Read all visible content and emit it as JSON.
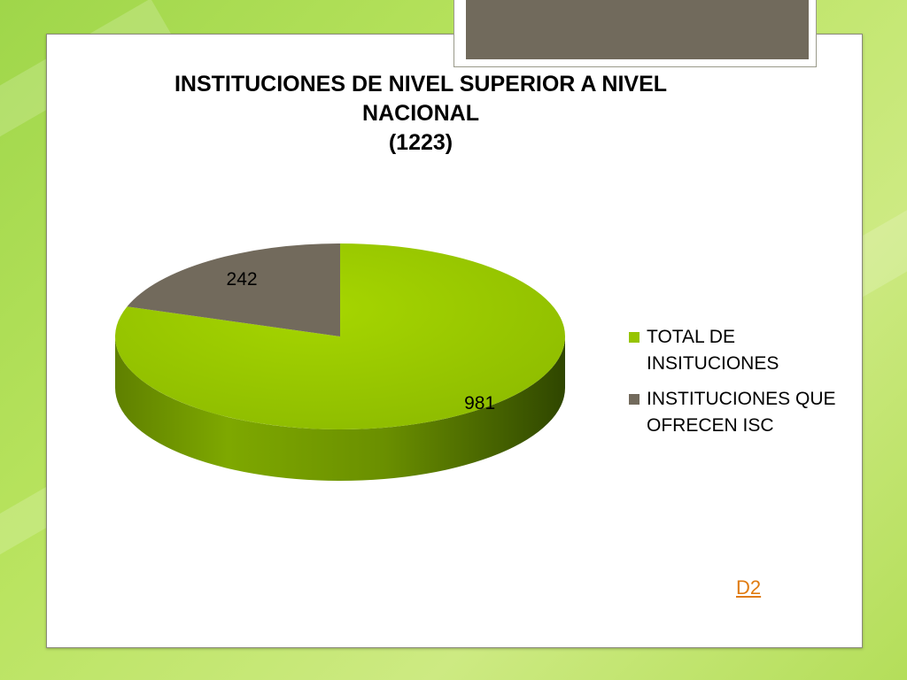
{
  "slide": {
    "link_label": "D2",
    "colors": {
      "background": "#a6d94e",
      "card": "#ffffff",
      "header_tab": "#716a5c",
      "link": "#e07b10"
    }
  },
  "chart_data": {
    "type": "pie",
    "title_lines": [
      "INSTITUCIONES DE NIVEL SUPERIOR A NIVEL",
      "NACIONAL",
      "(1223)"
    ],
    "categories": [
      "TOTAL DE INSITUCIONES",
      "INSTITUCIONES QUE OFRECEN ISC"
    ],
    "values": [
      981,
      242
    ],
    "data_labels": [
      "981",
      "242"
    ],
    "colors": [
      "#96c400",
      "#726a5c"
    ],
    "legend": {
      "placement": "right",
      "items": [
        {
          "label": "TOTAL DE INSITUCIONES",
          "color": "#96c400"
        },
        {
          "label": "INSTITUCIONES QUE OFRECEN ISC",
          "color": "#726a5c"
        }
      ]
    },
    "style": "3d-pie"
  }
}
